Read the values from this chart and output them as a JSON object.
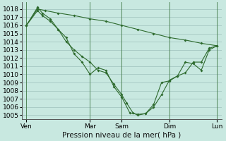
{
  "bg_color": "#c8e8e0",
  "line_color": "#2d6a2d",
  "grid_color": "#9ec0bc",
  "xlabel": "Pression niveau de la mer( hPa )",
  "xlabel_fontsize": 7.5,
  "tick_fontsize": 6.5,
  "ylim": [
    1004.5,
    1018.8
  ],
  "yticks": [
    1005,
    1006,
    1007,
    1008,
    1009,
    1010,
    1011,
    1012,
    1013,
    1014,
    1015,
    1016,
    1017,
    1018
  ],
  "xtick_labels": [
    "Ven",
    "",
    "Mar",
    "Sam",
    "",
    "Dim",
    "",
    "Lun"
  ],
  "xtick_positions": [
    0,
    2,
    4,
    6,
    7.5,
    9,
    10.5,
    12
  ],
  "vlines": [
    0,
    4,
    6,
    9,
    12
  ],
  "xlim": [
    -0.3,
    12.3
  ],
  "line1_x": [
    0,
    0.7,
    1.2,
    2,
    3,
    4,
    5,
    6,
    7,
    8,
    9,
    10,
    11,
    12
  ],
  "line1_y": [
    1016.0,
    1018.0,
    1017.8,
    1017.5,
    1017.2,
    1016.8,
    1016.5,
    1016.0,
    1015.5,
    1015.0,
    1014.5,
    1014.2,
    1013.8,
    1013.5
  ],
  "line2_x": [
    0,
    0.7,
    1.0,
    1.5,
    2.0,
    2.5,
    3.0,
    3.5,
    4.0,
    4.5,
    5.0,
    5.5,
    6.0,
    6.5,
    7.0,
    7.5,
    8.0,
    8.5,
    9.0,
    9.5,
    10.0,
    10.5,
    11.0,
    11.5,
    12.0
  ],
  "line2_y": [
    1016.0,
    1018.2,
    1017.5,
    1016.8,
    1015.5,
    1014.5,
    1012.5,
    1011.5,
    1010.0,
    1010.8,
    1010.5,
    1008.5,
    1007.2,
    1005.3,
    1005.1,
    1005.2,
    1006.0,
    1007.5,
    1009.3,
    1009.8,
    1010.2,
    1011.5,
    1011.5,
    1013.2,
    1013.5
  ],
  "line3_x": [
    0,
    0.7,
    1.0,
    1.5,
    2.0,
    2.5,
    3.0,
    3.5,
    4.0,
    4.5,
    5.0,
    5.5,
    6.0,
    6.3,
    6.7,
    7.0,
    7.5,
    8.0,
    8.5,
    9.0,
    9.5,
    10.0,
    10.5,
    11.0,
    11.5,
    12.0
  ],
  "line3_y": [
    1016.0,
    1017.8,
    1017.2,
    1016.5,
    1015.5,
    1014.0,
    1013.0,
    1012.2,
    1011.5,
    1010.5,
    1010.2,
    1008.8,
    1007.5,
    1006.5,
    1005.3,
    1005.0,
    1005.2,
    1006.3,
    1009.0,
    1009.2,
    1009.8,
    1011.5,
    1011.3,
    1010.5,
    1013.0,
    1013.5
  ]
}
